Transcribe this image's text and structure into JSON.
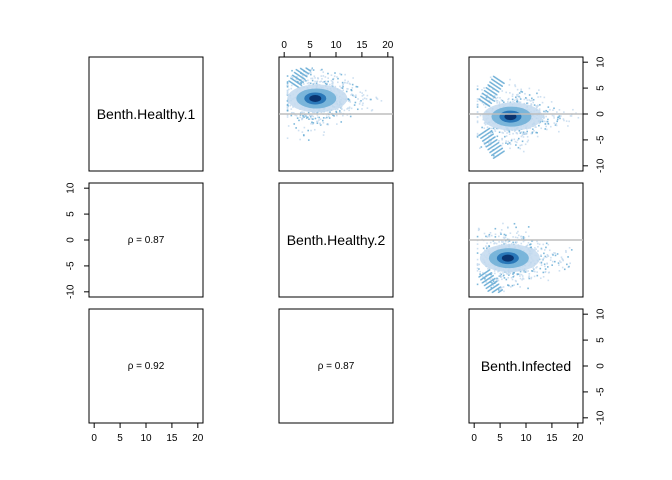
{
  "chart_data": {
    "type": "scatter",
    "title": "",
    "grid": false,
    "variables": [
      "Benth.Healthy.1",
      "Benth.Healthy.2",
      "Benth.Infected"
    ],
    "x_axis": {
      "range": [
        -1,
        21
      ],
      "ticks": [
        "0",
        "5",
        "10",
        "15",
        "20"
      ],
      "tick_values": [
        0,
        5,
        10,
        15,
        20
      ]
    },
    "y_axis": {
      "range": [
        -11,
        11
      ],
      "ticks": [
        "-10",
        "-5",
        "0",
        "5",
        "10"
      ],
      "tick_values": [
        -10,
        -5,
        0,
        5,
        10
      ]
    },
    "reference_line_y": 0,
    "colors": {
      "density_light": "#c6dbef",
      "density_mid": "#6baed6",
      "density_dark": "#08306b",
      "reference_line": "#bdbdbd",
      "frame": "#000000"
    },
    "correlations": [
      {
        "row": 2,
        "col": 1,
        "pair": [
          "Benth.Healthy.1",
          "Benth.Healthy.2"
        ],
        "label": "ρ = 0.87",
        "value": 0.87
      },
      {
        "row": 3,
        "col": 1,
        "pair": [
          "Benth.Healthy.1",
          "Benth.Infected"
        ],
        "label": "ρ = 0.92",
        "value": 0.92
      },
      {
        "row": 3,
        "col": 2,
        "pair": [
          "Benth.Healthy.2",
          "Benth.Infected"
        ],
        "label": "ρ = 0.87",
        "value": 0.87
      }
    ],
    "scatter_panels": [
      {
        "row": 1,
        "col": 2,
        "pair": [
          "Benth.Healthy.1",
          "Benth.Healthy.2"
        ],
        "density_center": [
          6,
          3
        ],
        "x_extent": [
          0.5,
          20
        ],
        "y_extent": [
          -5,
          9
        ],
        "wedge": "upper"
      },
      {
        "row": 1,
        "col": 3,
        "pair": [
          "Benth.Healthy.1",
          "Benth.Infected"
        ],
        "density_center": [
          7,
          -0.5
        ],
        "x_extent": [
          0.5,
          20
        ],
        "y_extent": [
          -9,
          8
        ],
        "wedge": "both"
      },
      {
        "row": 2,
        "col": 3,
        "pair": [
          "Benth.Healthy.2",
          "Benth.Infected"
        ],
        "density_center": [
          6.5,
          -3.5
        ],
        "x_extent": [
          0.5,
          19
        ],
        "y_extent": [
          -10,
          4
        ],
        "wedge": "lower"
      }
    ]
  }
}
